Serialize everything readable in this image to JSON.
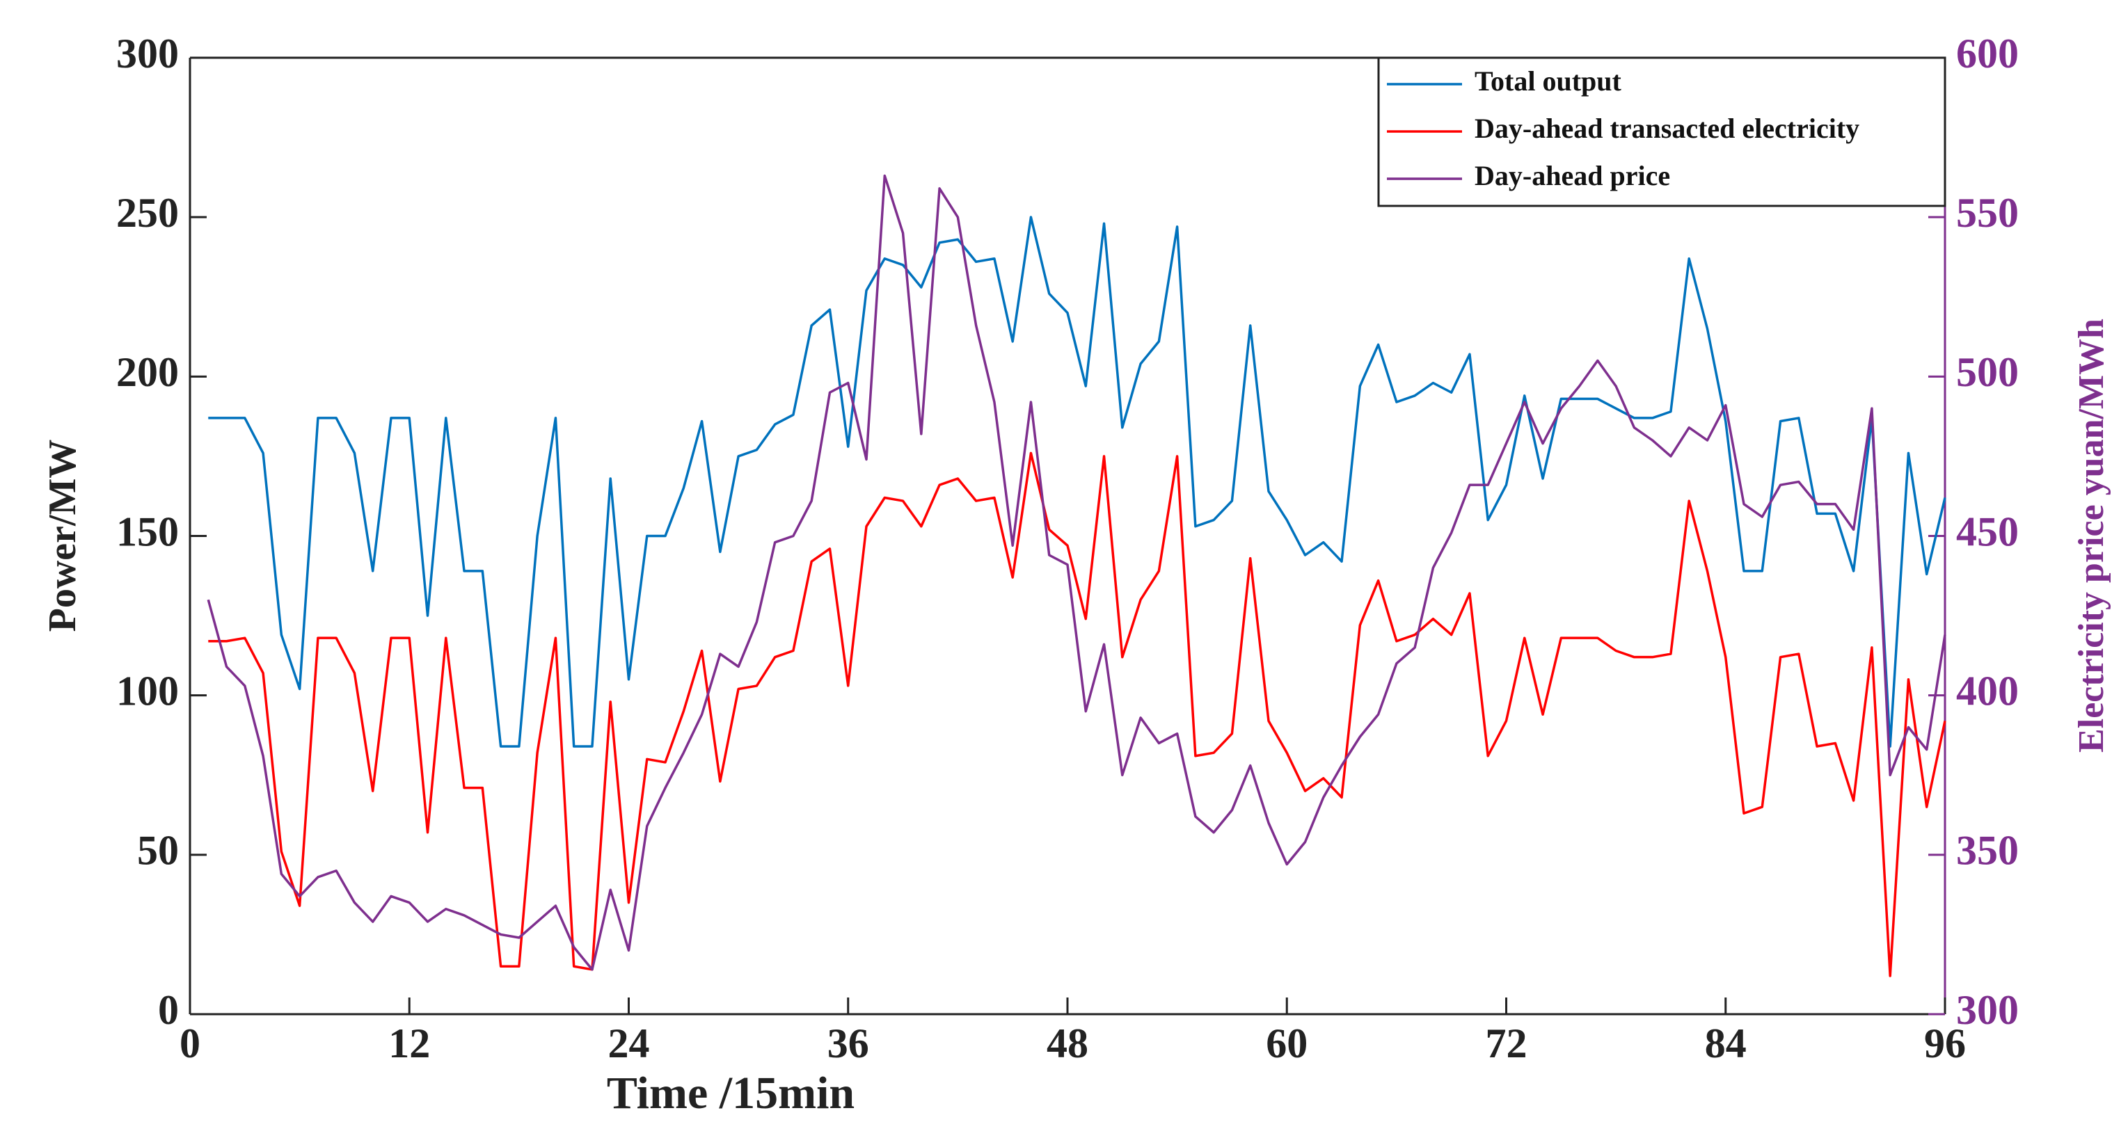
{
  "chart_data": {
    "type": "line",
    "xlabel": "Time /15min",
    "ylabel": "Power/MW",
    "y2label": "Electricity price yuan/MWh",
    "xlim": [
      0,
      96
    ],
    "xticks": [
      0,
      12,
      24,
      36,
      48,
      60,
      72,
      84,
      96
    ],
    "ylim": [
      0,
      300
    ],
    "yticks": [
      0,
      50,
      100,
      150,
      200,
      250,
      300
    ],
    "y2lim": [
      300,
      600
    ],
    "y2ticks": [
      300,
      350,
      400,
      450,
      500,
      550,
      600
    ],
    "y2color": "#7e2f8e",
    "legend": "upper right",
    "x": [
      1,
      2,
      3,
      4,
      5,
      6,
      7,
      8,
      9,
      10,
      11,
      12,
      13,
      14,
      15,
      16,
      17,
      18,
      19,
      20,
      21,
      22,
      23,
      24,
      25,
      26,
      27,
      28,
      29,
      30,
      31,
      32,
      33,
      34,
      35,
      36,
      37,
      38,
      39,
      40,
      41,
      42,
      43,
      44,
      45,
      46,
      47,
      48,
      49,
      50,
      51,
      52,
      53,
      54,
      55,
      56,
      57,
      58,
      59,
      60,
      61,
      62,
      63,
      64,
      65,
      66,
      67,
      68,
      69,
      70,
      71,
      72,
      73,
      74,
      75,
      76,
      77,
      78,
      79,
      80,
      81,
      82,
      83,
      84,
      85,
      86,
      87,
      88,
      89,
      90,
      91,
      92,
      93,
      94,
      95,
      96
    ],
    "series": [
      {
        "name": "Total output",
        "color": "#0072bd",
        "values": [
          187,
          187,
          187,
          176,
          119,
          102,
          187,
          187,
          176,
          139,
          187,
          187,
          125,
          187,
          139,
          139,
          84,
          84,
          150,
          187,
          84,
          84,
          168,
          105,
          150,
          150,
          165,
          186,
          145,
          175,
          177,
          185,
          188,
          216,
          221,
          178,
          227,
          237,
          235,
          228,
          242,
          243,
          236,
          237,
          211,
          250,
          226,
          220,
          197,
          248,
          184,
          204,
          211,
          247,
          153,
          155,
          161,
          216,
          164,
          155,
          144,
          148,
          142,
          197,
          210,
          192,
          194,
          198,
          195,
          207,
          155,
          166,
          194,
          168,
          193,
          193,
          193,
          190,
          187,
          187,
          189,
          237,
          215,
          186,
          139,
          139,
          186,
          187,
          157,
          157,
          139,
          187,
          84,
          176,
          138,
          162
        ]
      },
      {
        "name": "Day-ahead transacted electricity",
        "color": "#ff0000",
        "values": [
          117,
          117,
          118,
          107,
          51,
          34,
          118,
          118,
          107,
          70,
          118,
          118,
          57,
          118,
          71,
          71,
          15,
          15,
          82,
          118,
          15,
          14,
          98,
          35,
          80,
          79,
          95,
          114,
          73,
          102,
          103,
          112,
          114,
          142,
          146,
          103,
          153,
          162,
          161,
          153,
          166,
          168,
          161,
          162,
          137,
          176,
          152,
          147,
          124,
          175,
          112,
          130,
          139,
          175,
          81,
          82,
          88,
          143,
          92,
          82,
          70,
          74,
          68,
          122,
          136,
          117,
          119,
          124,
          119,
          132,
          81,
          92,
          118,
          94,
          118,
          118,
          118,
          114,
          112,
          112,
          113,
          161,
          139,
          112,
          63,
          65,
          112,
          113,
          84,
          85,
          67,
          115,
          12,
          105,
          65,
          92
        ]
      },
      {
        "name": "Day-ahead price",
        "color": "#7e2f8e",
        "axis": "y2",
        "values": [
          430,
          409,
          403,
          381,
          344,
          337,
          343,
          345,
          335,
          329,
          337,
          335,
          329,
          333,
          331,
          328,
          325,
          324,
          329,
          334,
          321,
          314,
          339,
          320,
          359,
          371,
          382,
          394,
          413,
          409,
          423,
          448,
          450,
          461,
          495,
          498,
          474,
          563,
          545,
          482,
          559,
          550,
          516,
          492,
          447,
          492,
          444,
          441,
          395,
          416,
          375,
          393,
          385,
          388,
          362,
          357,
          364,
          378,
          360,
          347,
          354,
          368,
          378,
          387,
          394,
          410,
          415,
          440,
          451,
          466,
          466,
          479,
          492,
          479,
          490,
          497,
          505,
          497,
          484,
          480,
          475,
          484,
          480,
          491,
          460,
          456,
          466,
          467,
          460,
          460,
          452,
          490,
          375,
          390,
          383,
          419
        ]
      }
    ]
  }
}
